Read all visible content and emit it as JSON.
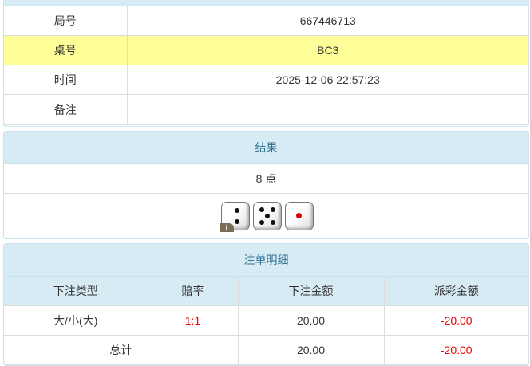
{
  "info": {
    "rows": [
      {
        "label": "局号",
        "value": "667446713"
      },
      {
        "label": "桌号",
        "value": "BC3"
      },
      {
        "label": "时间",
        "value": "2025-12-06 22:57:23"
      },
      {
        "label": "备注",
        "value": ""
      }
    ]
  },
  "result": {
    "title": "结果",
    "points": "8 点",
    "dice": [
      2,
      5,
      1
    ],
    "dice_badge": "i"
  },
  "bets": {
    "title": "注单明细",
    "headers": [
      "下注类型",
      "赔率",
      "下注金额",
      "派彩金额"
    ],
    "rows": [
      {
        "type": "大/小(大)",
        "odds": "1:1",
        "amount": "20.00",
        "payout": "-20.00"
      }
    ],
    "total": {
      "label": "总计",
      "amount": "20.00",
      "payout": "-20.00"
    }
  },
  "colors": {
    "header_bg": "#d6ebf4",
    "highlight": "#ffff99",
    "negative": "#ee0000"
  }
}
